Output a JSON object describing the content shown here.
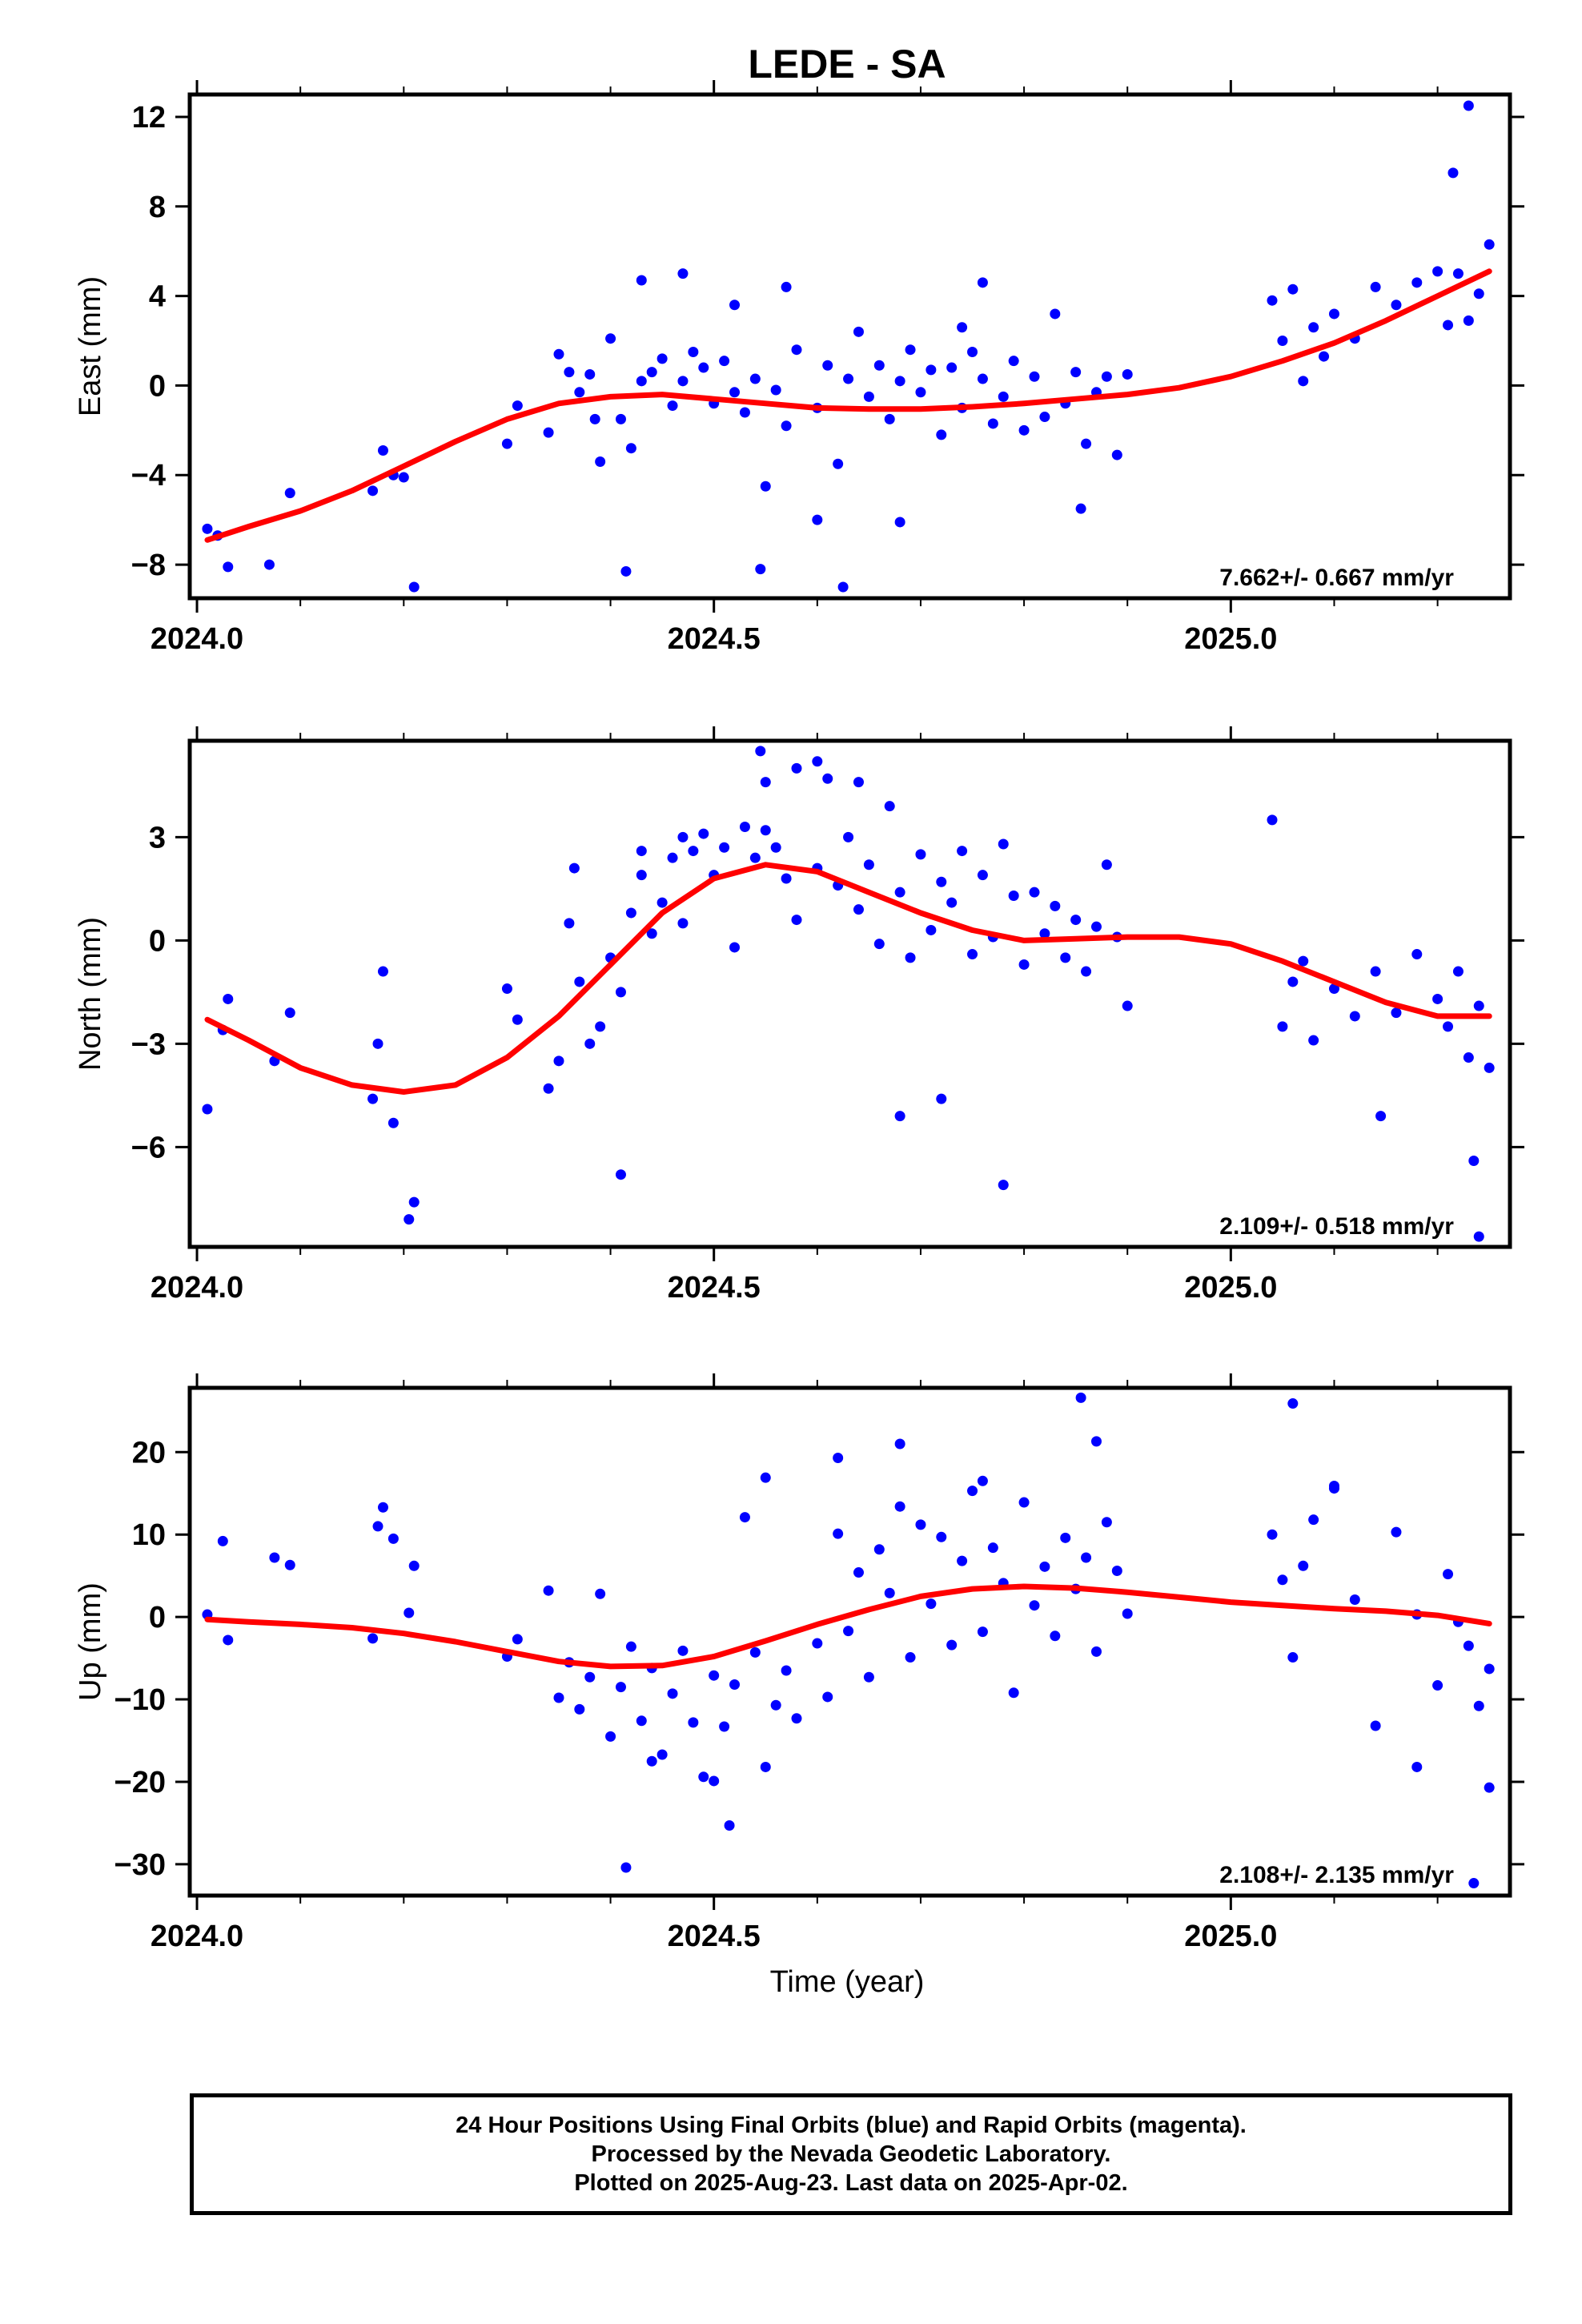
{
  "title": "LEDE - SA",
  "xlabel": "Time (year)",
  "caption": {
    "line1": "24 Hour Positions Using Final Orbits (blue) and Rapid Orbits (magenta).",
    "line2": "Processed by the Nevada Geodetic Laboratory.",
    "line3": "Plotted on 2025-Aug-23. Last data on 2025-Apr-02."
  },
  "colors": {
    "points": "#0000ff",
    "fit": "#ff0000",
    "frame": "#000000"
  },
  "chart_data": [
    {
      "type": "scatter",
      "title": "LEDE - SA",
      "ylabel": "East (mm)",
      "xlabel": "",
      "xlim": [
        2023.993,
        2025.27
      ],
      "ylim": [
        -9.5,
        13.0
      ],
      "xticks": [
        2024.0,
        2024.5,
        2025.0
      ],
      "xtick_labels": [
        "2024.0",
        "2024.5",
        "2025.0"
      ],
      "yticks": [
        -8,
        -4,
        0,
        4,
        8,
        12
      ],
      "ytick_labels": [
        "−8",
        "−4",
        "0",
        "4",
        "8",
        "12"
      ],
      "annotation": "7.662+/- 0.667 mm/yr",
      "series": [
        {
          "kind": "points",
          "x": [
            2024.01,
            2024.02,
            2024.03,
            2024.07,
            2024.09,
            2024.17,
            2024.18,
            2024.19,
            2024.2,
            2024.21,
            2024.3,
            2024.31,
            2024.34,
            2024.35,
            2024.36,
            2024.37,
            2024.38,
            2024.39,
            2024.4,
            2024.41,
            2024.42,
            2024.43,
            2024.44,
            2024.45,
            2024.46,
            2024.47,
            2024.48,
            2024.49,
            2024.5,
            2024.51,
            2024.52,
            2024.53,
            2024.54,
            2024.55,
            2024.56,
            2024.57,
            2024.58,
            2024.6,
            2024.61,
            2024.62,
            2024.63,
            2024.64,
            2024.65,
            2024.66,
            2024.67,
            2024.68,
            2024.69,
            2024.7,
            2024.71,
            2024.72,
            2024.73,
            2024.74,
            2024.75,
            2024.76,
            2024.77,
            2024.78,
            2024.79,
            2024.8,
            2024.81,
            2024.82,
            2024.83,
            2024.84,
            2024.85,
            2024.86,
            2024.87,
            2024.88,
            2024.89,
            2024.9,
            2025.04,
            2025.05,
            2025.06,
            2025.07,
            2025.08,
            2025.1,
            2025.12,
            2025.14,
            2025.16,
            2025.18,
            2025.2,
            2025.21,
            2025.22,
            2025.23,
            2025.24,
            2025.25,
            2024.415,
            2024.545,
            2024.625,
            2024.855,
            2025.23,
            2024.52,
            2024.68,
            2024.43,
            2024.57,
            2024.76,
            2025.215,
            2024.385,
            2024.47,
            2024.6,
            2024.74,
            2025.09
          ],
          "y": [
            -6.4,
            -6.7,
            -8.1,
            -8.0,
            -4.8,
            -4.7,
            -2.9,
            -4.0,
            -4.1,
            -9.0,
            -2.6,
            -0.9,
            -2.1,
            1.4,
            0.6,
            -0.3,
            0.5,
            -3.4,
            2.1,
            -1.5,
            -2.8,
            0.2,
            0.6,
            1.2,
            -0.9,
            0.2,
            1.5,
            0.8,
            -0.8,
            1.1,
            -0.3,
            -1.2,
            0.3,
            -4.5,
            -0.2,
            -1.8,
            1.6,
            -1.0,
            0.9,
            -3.5,
            0.3,
            2.4,
            -0.5,
            0.9,
            -1.5,
            0.2,
            1.6,
            -0.3,
            0.7,
            -2.2,
            0.8,
            -1.0,
            1.5,
            0.3,
            -1.7,
            -0.5,
            1.1,
            -2.0,
            0.4,
            -1.4,
            3.2,
            -0.8,
            0.6,
            -2.6,
            -0.3,
            0.4,
            -3.1,
            0.5,
            3.8,
            2.0,
            4.3,
            0.2,
            2.6,
            3.2,
            2.1,
            4.4,
            3.6,
            4.6,
            5.1,
            2.7,
            5.0,
            2.9,
            4.1,
            6.3,
            -8.3,
            -8.2,
            -9.0,
            -5.5,
            12.5,
            3.6,
            -6.1,
            4.7,
            4.4,
            4.6,
            9.5,
            -1.5,
            5.0,
            -6.0,
            2.6,
            1.3
          ]
        },
        {
          "kind": "fit",
          "x": [
            2024.01,
            2024.05,
            2024.1,
            2024.15,
            2024.2,
            2024.25,
            2024.3,
            2024.35,
            2024.4,
            2024.45,
            2024.5,
            2024.55,
            2024.6,
            2024.65,
            2024.7,
            2024.75,
            2024.8,
            2024.85,
            2024.9,
            2024.95,
            2025.0,
            2025.05,
            2025.1,
            2025.15,
            2025.2,
            2025.25
          ],
          "y": [
            -6.9,
            -6.3,
            -5.6,
            -4.7,
            -3.6,
            -2.5,
            -1.5,
            -0.8,
            -0.5,
            -0.4,
            -0.6,
            -0.8,
            -1.0,
            -1.05,
            -1.05,
            -0.95,
            -0.8,
            -0.6,
            -0.4,
            -0.1,
            0.4,
            1.1,
            1.9,
            2.9,
            4.0,
            5.1
          ]
        }
      ]
    },
    {
      "type": "scatter",
      "ylabel": "North (mm)",
      "xlabel": "",
      "xlim": [
        2023.993,
        2025.27
      ],
      "ylim": [
        -8.9,
        5.8
      ],
      "xticks": [
        2024.0,
        2024.5,
        2025.0
      ],
      "xtick_labels": [
        "2024.0",
        "2024.5",
        "2025.0"
      ],
      "yticks": [
        -6,
        -3,
        0,
        3
      ],
      "ytick_labels": [
        "−6",
        "−3",
        "0",
        "3"
      ],
      "annotation": "2.109+/- 0.518 mm/yr",
      "series": [
        {
          "kind": "points",
          "x": [
            2024.01,
            2024.025,
            2024.03,
            2024.075,
            2024.09,
            2024.17,
            2024.175,
            2024.18,
            2024.19,
            2024.205,
            2024.21,
            2024.3,
            2024.31,
            2024.34,
            2024.35,
            2024.36,
            2024.37,
            2024.38,
            2024.39,
            2024.4,
            2024.41,
            2024.42,
            2024.43,
            2024.44,
            2024.45,
            2024.46,
            2024.47,
            2024.48,
            2024.49,
            2024.5,
            2024.51,
            2024.52,
            2024.53,
            2024.54,
            2024.55,
            2024.56,
            2024.57,
            2024.58,
            2024.6,
            2024.61,
            2024.62,
            2024.63,
            2024.64,
            2024.65,
            2024.66,
            2024.67,
            2024.68,
            2024.69,
            2024.7,
            2024.71,
            2024.72,
            2024.73,
            2024.74,
            2024.75,
            2024.76,
            2024.77,
            2024.78,
            2024.79,
            2024.8,
            2024.81,
            2024.82,
            2024.83,
            2024.84,
            2024.85,
            2024.86,
            2024.87,
            2024.88,
            2024.89,
            2024.9,
            2025.04,
            2025.05,
            2025.06,
            2025.07,
            2025.08,
            2025.1,
            2025.12,
            2025.14,
            2025.16,
            2025.18,
            2025.2,
            2025.21,
            2025.22,
            2025.23,
            2025.24,
            2025.25,
            2024.41,
            2024.545,
            2024.6,
            2024.68,
            2024.72,
            2024.78,
            2025.145,
            2025.235,
            2025.24,
            2024.55,
            2024.365,
            2024.43,
            2024.47,
            2024.58,
            2024.64
          ],
          "y": [
            -4.9,
            -2.6,
            -1.7,
            -3.5,
            -2.1,
            -4.6,
            -3.0,
            -0.9,
            -5.3,
            -8.1,
            -7.6,
            -1.4,
            -2.3,
            -4.3,
            -3.5,
            0.5,
            -1.2,
            -3.0,
            -2.5,
            -0.5,
            -1.5,
            0.8,
            1.9,
            0.2,
            1.1,
            2.4,
            0.5,
            2.6,
            3.1,
            1.9,
            2.7,
            -0.2,
            3.3,
            2.4,
            3.2,
            2.7,
            1.8,
            0.6,
            2.1,
            4.7,
            1.6,
            3.0,
            0.9,
            2.2,
            -0.1,
            3.9,
            1.4,
            -0.5,
            2.5,
            0.3,
            1.7,
            1.1,
            2.6,
            -0.4,
            1.9,
            0.1,
            2.8,
            1.3,
            -0.7,
            1.4,
            0.2,
            1.0,
            -0.5,
            0.6,
            -0.9,
            0.4,
            2.2,
            0.1,
            -1.9,
            3.5,
            -2.5,
            -1.2,
            -0.6,
            -2.9,
            -1.4,
            -2.2,
            -0.9,
            -2.1,
            -0.4,
            -1.7,
            -2.5,
            -0.9,
            -3.4,
            -1.9,
            -3.7,
            -6.8,
            5.5,
            5.2,
            -5.1,
            -4.6,
            -7.1,
            -5.1,
            -6.4,
            -8.6,
            4.6,
            2.1,
            2.6,
            3.0,
            5.0,
            4.6
          ],
          "note": "individual daily positions"
        },
        {
          "kind": "fit",
          "x": [
            2024.01,
            2024.05,
            2024.1,
            2024.15,
            2024.2,
            2024.25,
            2024.3,
            2024.35,
            2024.4,
            2024.45,
            2024.5,
            2024.55,
            2024.6,
            2024.65,
            2024.7,
            2024.75,
            2024.8,
            2024.85,
            2024.9,
            2024.95,
            2025.0,
            2025.05,
            2025.1,
            2025.15,
            2025.2,
            2025.25
          ],
          "y": [
            -2.3,
            -2.9,
            -3.7,
            -4.2,
            -4.4,
            -4.2,
            -3.4,
            -2.2,
            -0.7,
            0.8,
            1.8,
            2.2,
            2.0,
            1.4,
            0.8,
            0.3,
            0.0,
            0.05,
            0.1,
            0.1,
            -0.1,
            -0.6,
            -1.2,
            -1.8,
            -2.2,
            -2.2
          ]
        }
      ]
    },
    {
      "type": "scatter",
      "ylabel": "Up (mm)",
      "xlabel": "Time (year)",
      "xlim": [
        2023.993,
        2025.27
      ],
      "ylim": [
        -33.8,
        27.8
      ],
      "xticks": [
        2024.0,
        2024.5,
        2025.0
      ],
      "xtick_labels": [
        "2024.0",
        "2024.5",
        "2025.0"
      ],
      "yticks": [
        -30,
        -20,
        -10,
        0,
        10,
        20
      ],
      "ytick_labels": [
        "−30",
        "−20",
        "−10",
        "0",
        "10",
        "20"
      ],
      "annotation": "2.108+/- 2.135 mm/yr",
      "series": [
        {
          "kind": "points",
          "x": [
            2024.01,
            2024.025,
            2024.03,
            2024.075,
            2024.09,
            2024.17,
            2024.175,
            2024.18,
            2024.19,
            2024.205,
            2024.21,
            2024.3,
            2024.31,
            2024.34,
            2024.35,
            2024.36,
            2024.37,
            2024.38,
            2024.39,
            2024.4,
            2024.41,
            2024.42,
            2024.43,
            2024.44,
            2024.45,
            2024.46,
            2024.47,
            2024.48,
            2024.49,
            2024.5,
            2024.51,
            2024.52,
            2024.53,
            2024.54,
            2024.55,
            2024.56,
            2024.57,
            2024.58,
            2024.6,
            2024.61,
            2024.62,
            2024.63,
            2024.64,
            2024.65,
            2024.66,
            2024.67,
            2024.68,
            2024.69,
            2024.7,
            2024.71,
            2024.72,
            2024.73,
            2024.74,
            2024.75,
            2024.76,
            2024.77,
            2024.78,
            2024.79,
            2024.8,
            2024.81,
            2024.82,
            2024.83,
            2024.84,
            2024.85,
            2024.86,
            2024.87,
            2024.88,
            2024.89,
            2024.9,
            2025.04,
            2025.05,
            2025.06,
            2025.07,
            2025.08,
            2025.1,
            2025.12,
            2025.14,
            2025.16,
            2025.18,
            2025.2,
            2025.21,
            2025.22,
            2025.23,
            2025.24,
            2025.25,
            2024.415,
            2024.515,
            2024.855,
            2025.235,
            2025.06,
            2024.68,
            2024.87,
            2024.62,
            2024.55,
            2025.25,
            2024.44,
            2024.5,
            2024.76,
            2025.1,
            2025.18
          ],
          "y": [
            0.3,
            9.2,
            -2.8,
            7.2,
            6.3,
            -2.6,
            11.0,
            13.3,
            9.5,
            0.5,
            6.2,
            -4.8,
            -2.7,
            3.2,
            -9.8,
            -5.5,
            -11.2,
            -7.3,
            2.8,
            -14.5,
            -8.5,
            -3.6,
            -12.6,
            -6.2,
            -16.7,
            -9.3,
            -4.1,
            -12.8,
            -19.4,
            -7.1,
            -13.3,
            -8.2,
            12.1,
            -4.3,
            -18.2,
            -10.7,
            -6.5,
            -12.3,
            -3.2,
            -9.7,
            10.1,
            -1.7,
            5.4,
            -7.3,
            8.2,
            2.9,
            13.4,
            -4.9,
            11.2,
            1.6,
            9.7,
            -3.4,
            6.8,
            15.3,
            -1.8,
            8.4,
            4.1,
            -9.2,
            13.9,
            1.4,
            6.1,
            -2.3,
            9.6,
            3.4,
            7.2,
            -4.2,
            11.5,
            5.6,
            0.4,
            10.0,
            4.5,
            -4.9,
            6.2,
            11.8,
            15.9,
            2.1,
            -13.2,
            10.3,
            0.3,
            -8.3,
            5.2,
            -0.6,
            -3.5,
            -10.8,
            -6.3,
            -30.4,
            -25.3,
            26.6,
            -32.3,
            25.9,
            21.0,
            21.3,
            19.3,
            16.9,
            -20.7,
            -17.5,
            -19.9,
            16.5,
            15.6,
            -18.2
          ],
          "note": "individual daily positions"
        },
        {
          "kind": "fit",
          "x": [
            2024.01,
            2024.05,
            2024.1,
            2024.15,
            2024.2,
            2024.25,
            2024.3,
            2024.35,
            2024.4,
            2024.45,
            2024.5,
            2024.55,
            2024.6,
            2024.65,
            2024.7,
            2024.75,
            2024.8,
            2024.85,
            2024.9,
            2024.95,
            2025.0,
            2025.05,
            2025.1,
            2025.15,
            2025.2,
            2025.25
          ],
          "y": [
            -0.3,
            -0.6,
            -0.9,
            -1.3,
            -2.0,
            -3.0,
            -4.2,
            -5.4,
            -6.0,
            -5.9,
            -4.8,
            -2.9,
            -0.9,
            0.9,
            2.5,
            3.4,
            3.7,
            3.5,
            3.0,
            2.4,
            1.8,
            1.4,
            1.0,
            0.7,
            0.2,
            -0.8
          ]
        }
      ]
    }
  ]
}
